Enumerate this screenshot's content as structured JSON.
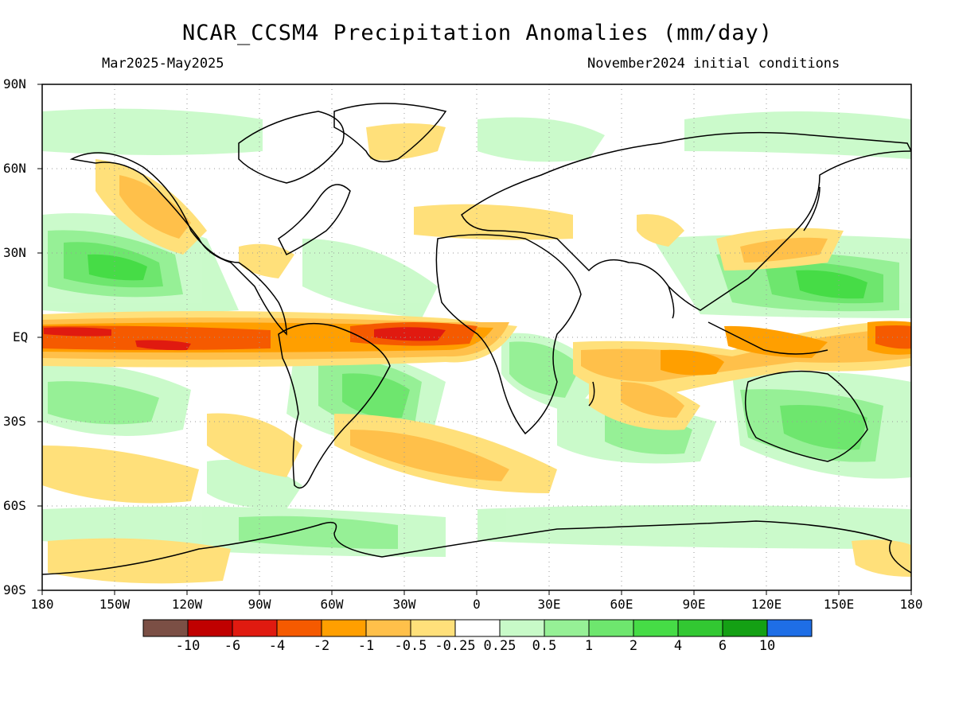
{
  "title": "NCAR_CCSM4 Precipitation Anomalies (mm/day)",
  "period": "Mar2025-May2025",
  "init": "November2024 initial conditions",
  "lat_labels": [
    "90N",
    "60N",
    "30N",
    "EQ",
    "30S",
    "60S",
    "90S"
  ],
  "lon_labels": [
    "180",
    "150W",
    "120W",
    "90W",
    "60W",
    "30W",
    "0",
    "30E",
    "60E",
    "90E",
    "120E",
    "150E",
    "180"
  ],
  "colorbar": {
    "colors": [
      "#7b4f45",
      "#c00000",
      "#e01a10",
      "#f55a00",
      "#ff9f00",
      "#ffc04a",
      "#ffe07a",
      "#ffffff",
      "#c8fac8",
      "#96f096",
      "#6ee66e",
      "#46dc46",
      "#32c832",
      "#14a014",
      "#1e6ee6"
    ],
    "labels": [
      "-10",
      "-6",
      "-4",
      "-2",
      "-1",
      "-0.5",
      "-0.25",
      "0.25",
      "0.5",
      "1",
      "2",
      "4",
      "6",
      "10"
    ]
  },
  "legend_ranges": {
    "dry": "brown/red/orange/yellow",
    "wet": "green/blue"
  }
}
